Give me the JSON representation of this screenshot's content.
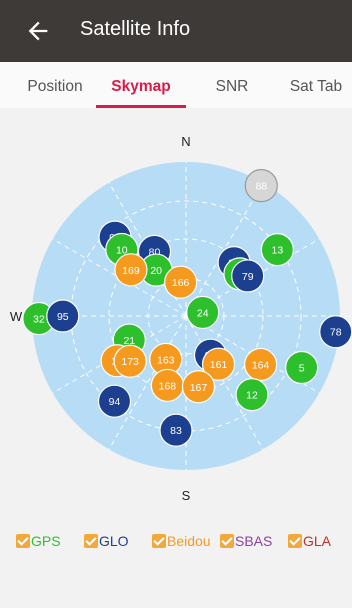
{
  "header": {
    "title": "Satellite Info"
  },
  "tabs": [
    {
      "label": "Position",
      "active": false
    },
    {
      "label": "Skymap",
      "active": true
    },
    {
      "label": "SNR",
      "active": false
    },
    {
      "label": "Sat Tab",
      "active": false
    }
  ],
  "skymap": {
    "directions": {
      "north": "N",
      "south": "S",
      "west": "W"
    },
    "colors": {
      "GPS": "#2ec02c",
      "GLO": "#1d3f8f",
      "Beidou": "#f59a1f",
      "inactive": "#d6d6d6",
      "sky": "#b7dcf5"
    },
    "satellites": [
      {
        "id": "88",
        "system": "inactive",
        "elevation": 2,
        "azimuth": 30
      },
      {
        "id": "96",
        "system": "GLO",
        "elevation": 28,
        "azimuth": 318
      },
      {
        "id": "10",
        "system": "GPS",
        "elevation": 36,
        "azimuth": 316
      },
      {
        "id": "80",
        "system": "GLO",
        "elevation": 48,
        "azimuth": 334
      },
      {
        "id": "20",
        "system": "GPS",
        "elevation": 58,
        "azimuth": 327
      },
      {
        "id": "166",
        "system": "Beidou",
        "elevation": 70,
        "azimuth": 351
      },
      {
        "id": "169",
        "system": "Beidou",
        "elevation": 48,
        "azimuth": 310
      },
      {
        "id": "89",
        "system": "GLO",
        "elevation": 48,
        "azimuth": 42
      },
      {
        "id": "15",
        "system": "GPS",
        "elevation": 50,
        "azimuth": 52
      },
      {
        "id": "79",
        "system": "GLO",
        "elevation": 47,
        "azimuth": 57
      },
      {
        "id": "13",
        "system": "GPS",
        "elevation": 24,
        "azimuth": 54
      },
      {
        "id": "24",
        "system": "GPS",
        "elevation": 80,
        "azimuth": 78
      },
      {
        "id": "32",
        "system": "GPS",
        "elevation": 4,
        "azimuth": 269
      },
      {
        "id": "95",
        "system": "GLO",
        "elevation": 18,
        "azimuth": 270
      },
      {
        "id": "78",
        "system": "GLO",
        "elevation": 2,
        "azimuth": 96
      },
      {
        "id": "21",
        "system": "GPS",
        "elevation": 54,
        "azimuth": 247
      },
      {
        "id": "16",
        "system": "Beidou",
        "elevation": 42,
        "azimuth": 237
      },
      {
        "id": "173",
        "system": "Beidou",
        "elevation": 48,
        "azimuth": 231
      },
      {
        "id": "163",
        "system": "Beidou",
        "elevation": 62,
        "azimuth": 205
      },
      {
        "id": "90",
        "system": "GLO",
        "elevation": 63,
        "azimuth": 148
      },
      {
        "id": "161",
        "system": "Beidou",
        "elevation": 56,
        "azimuth": 146
      },
      {
        "id": "164",
        "system": "Beidou",
        "elevation": 38,
        "azimuth": 123
      },
      {
        "id": "5",
        "system": "GPS",
        "elevation": 16,
        "azimuth": 114
      },
      {
        "id": "12",
        "system": "GPS",
        "elevation": 30,
        "azimuth": 140
      },
      {
        "id": "94",
        "system": "GLO",
        "elevation": 25,
        "azimuth": 220
      },
      {
        "id": "168",
        "system": "Beidou",
        "elevation": 48,
        "azimuth": 195
      },
      {
        "id": "167",
        "system": "Beidou",
        "elevation": 48,
        "azimuth": 170
      },
      {
        "id": "83",
        "system": "GLO",
        "elevation": 23,
        "azimuth": 185
      }
    ]
  },
  "legend": [
    {
      "label": "GPS",
      "color": "#2ec02c",
      "checked": true
    },
    {
      "label": "GLO",
      "color": "#1d3f8f",
      "checked": true
    },
    {
      "label": "Beidou",
      "color": "#f59a1f",
      "checked": true
    },
    {
      "label": "SBAS",
      "color": "#8e3fa8",
      "checked": true
    },
    {
      "label": "GLA",
      "color": "#c0312b",
      "checked": true
    }
  ]
}
